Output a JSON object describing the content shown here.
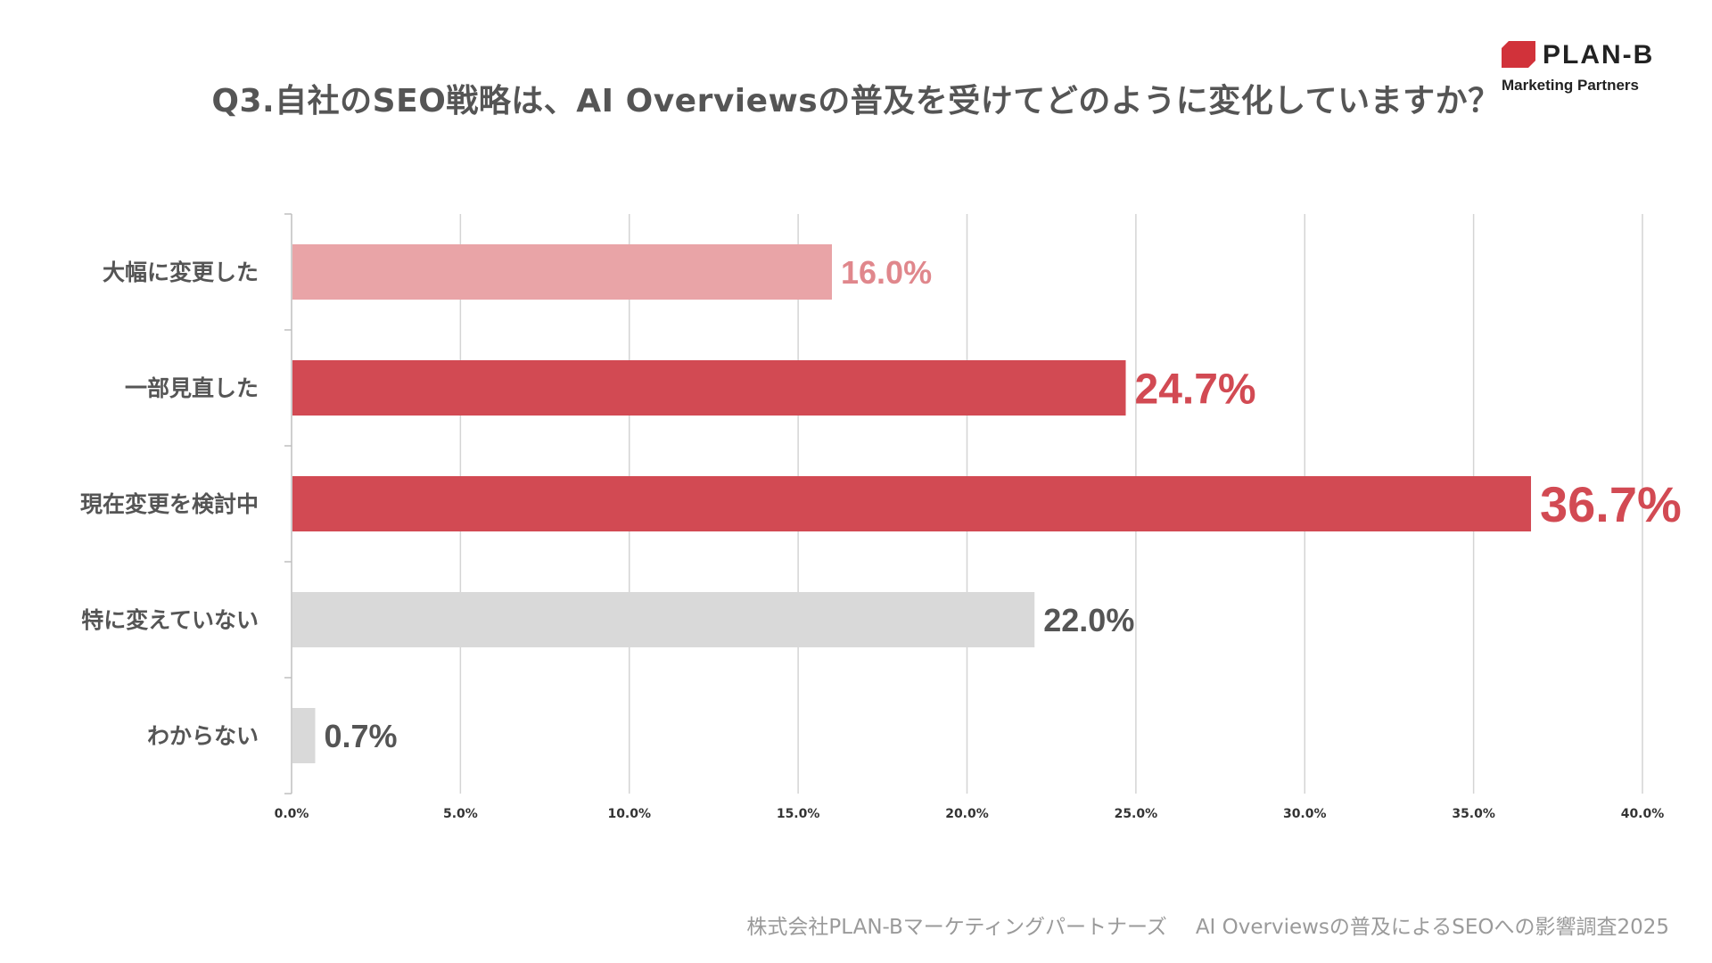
{
  "brand": {
    "name": "PLAN-B",
    "tagline": "Marketing Partners",
    "mark_color": "#d1323a"
  },
  "source": {
    "company": "株式会社PLAN-Bマーケティングパートナーズ",
    "survey": "AI Overviewsの普及によるSEOへの影響調査2025"
  },
  "chart_data": {
    "type": "bar",
    "orientation": "horizontal",
    "title": "Q3.自社のSEO戦略は、AI Overviewsの普及を受けてどのように変化していますか？",
    "xlabel": "",
    "ylabel": "",
    "xlim": [
      0,
      40
    ],
    "grid": true,
    "categories": [
      "大幅に変更した",
      "一部見直した",
      "現在変更を検討中",
      "特に変えていない",
      "わからない"
    ],
    "values": [
      16.0,
      24.7,
      36.7,
      22.0,
      0.7
    ],
    "value_labels": [
      "16.0%",
      "24.7%",
      "36.7%",
      "22.0%",
      "0.7%"
    ],
    "bar_colors": [
      "#e9a4a7",
      "#d24a53",
      "#d24a53",
      "#d9d9d9",
      "#d9d9d9"
    ],
    "label_colors": [
      "#e0878c",
      "#d24a53",
      "#d24a53",
      "#555555",
      "#555555"
    ],
    "label_emphasis": [
      "normal",
      "large",
      "xlarge",
      "normal",
      "normal"
    ],
    "ticks": [
      0,
      5,
      10,
      15,
      20,
      25,
      30,
      35,
      40
    ],
    "tick_labels": [
      "0.0%",
      "5.0%",
      "10.0%",
      "15.0%",
      "20.0%",
      "25.0%",
      "30.0%",
      "35.0%",
      "40.0%"
    ]
  }
}
